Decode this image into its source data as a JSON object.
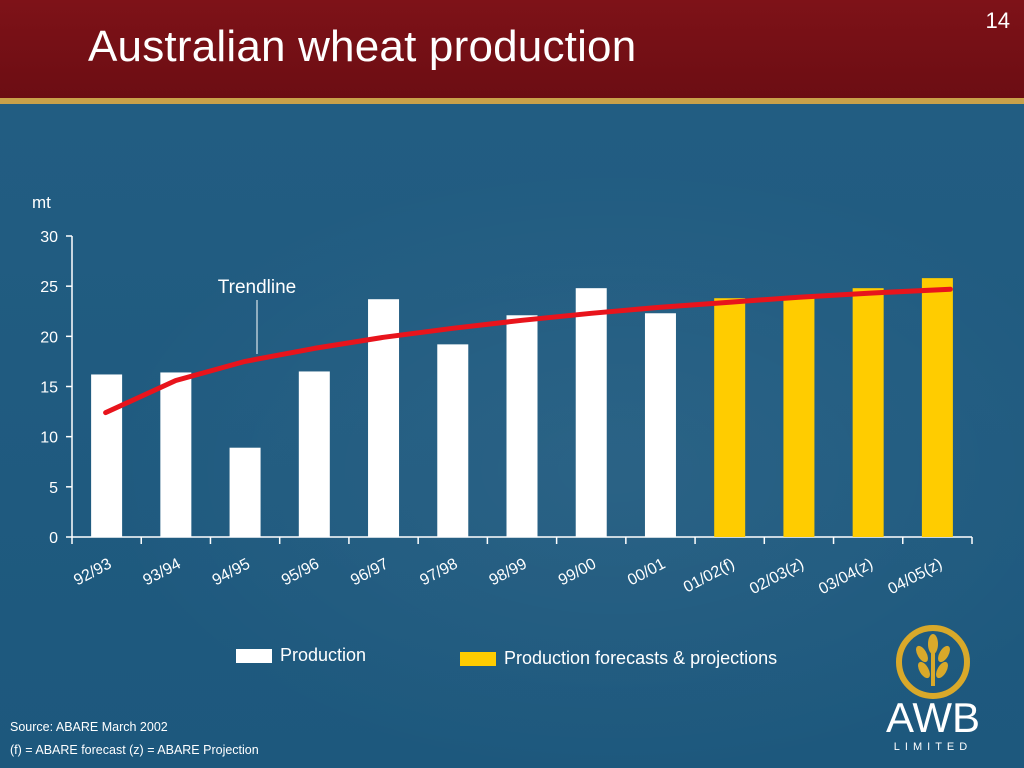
{
  "slide": {
    "title": "Australian wheat production",
    "number": "14"
  },
  "legend": {
    "production": "Production",
    "forecasts": "Production forecasts & projections"
  },
  "footnotes": {
    "source": "Source: ABARE March 2002",
    "key": "(f) = ABARE forecast  (z) = ABARE Projection"
  },
  "logo": {
    "text": "AWB",
    "subtext": "LIMITED"
  },
  "colors": {
    "production": "#ffffff",
    "forecast": "#ffcc00",
    "trendline": "#e8141c",
    "header": "#7a1117",
    "background": "#1f5a7f"
  },
  "chart_data": {
    "type": "bar",
    "ylabel": "mt",
    "ylim": [
      0,
      30
    ],
    "yticks": [
      0,
      5,
      10,
      15,
      20,
      25,
      30
    ],
    "categories": [
      "92/93",
      "93/94",
      "94/95",
      "95/96",
      "96/97",
      "97/98",
      "98/99",
      "99/00",
      "00/01",
      "01/02(f)",
      "02/03(z)",
      "03/04(z)",
      "04/05(z)"
    ],
    "series": [
      {
        "name": "Production",
        "values": [
          16.2,
          16.4,
          8.9,
          16.5,
          23.7,
          19.2,
          22.1,
          24.8,
          22.3,
          null,
          null,
          null,
          null
        ]
      },
      {
        "name": "Production forecasts & projections",
        "values": [
          null,
          null,
          null,
          null,
          null,
          null,
          null,
          null,
          null,
          23.8,
          24.0,
          24.8,
          25.8
        ]
      }
    ],
    "trendline": {
      "label": "Trendline",
      "values": [
        12.4,
        15.6,
        17.5,
        18.8,
        19.9,
        20.8,
        21.6,
        22.3,
        22.9,
        23.4,
        23.9,
        24.3,
        24.7
      ]
    }
  }
}
